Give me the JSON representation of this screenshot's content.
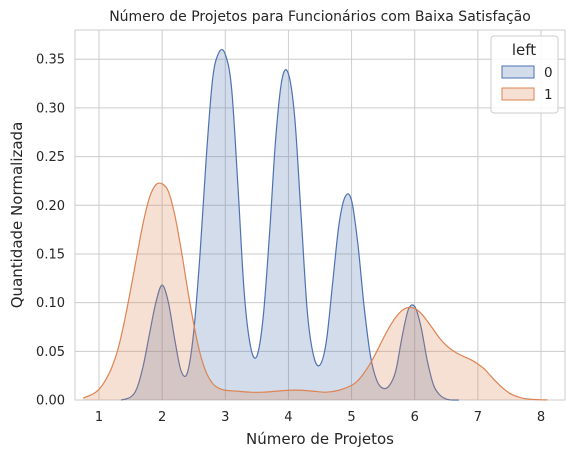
{
  "chart_data": {
    "type": "area",
    "subtype": "kde",
    "title": "Número de Projetos para Funcionários com Baixa Satisfação",
    "xlabel": "Número de Projetos",
    "ylabel": "Quantidade Normalizada",
    "xlim": [
      0.62,
      8.38
    ],
    "ylim": [
      0,
      0.38
    ],
    "xticks": [
      1,
      2,
      3,
      4,
      5,
      6,
      7,
      8
    ],
    "yticks": [
      0.0,
      0.05,
      0.1,
      0.15,
      0.2,
      0.25,
      0.3,
      0.35
    ],
    "ytick_labels": [
      "0.00",
      "0.05",
      "0.10",
      "0.15",
      "0.20",
      "0.25",
      "0.30",
      "0.35"
    ],
    "grid": true,
    "legend": {
      "title": "left",
      "placement": "top-right"
    },
    "series": [
      {
        "name": "0",
        "color": "#4c72b0",
        "x": [
          1.35,
          1.5,
          1.6,
          1.7,
          1.8,
          1.9,
          2.0,
          2.1,
          2.2,
          2.3,
          2.4,
          2.5,
          2.6,
          2.7,
          2.8,
          2.9,
          3.0,
          3.1,
          3.2,
          3.3,
          3.4,
          3.5,
          3.6,
          3.7,
          3.8,
          3.9,
          4.0,
          4.1,
          4.2,
          4.3,
          4.4,
          4.5,
          4.6,
          4.7,
          4.8,
          4.9,
          5.0,
          5.1,
          5.2,
          5.3,
          5.4,
          5.5,
          5.6,
          5.7,
          5.8,
          5.9,
          6.0,
          6.1,
          6.2,
          6.3,
          6.4,
          6.5,
          6.6,
          6.7
        ],
        "values": [
          0.0,
          0.003,
          0.012,
          0.035,
          0.068,
          0.1,
          0.118,
          0.1,
          0.062,
          0.03,
          0.028,
          0.07,
          0.15,
          0.25,
          0.33,
          0.357,
          0.355,
          0.32,
          0.22,
          0.11,
          0.055,
          0.045,
          0.085,
          0.17,
          0.27,
          0.33,
          0.335,
          0.29,
          0.19,
          0.09,
          0.045,
          0.036,
          0.06,
          0.12,
          0.18,
          0.209,
          0.205,
          0.16,
          0.095,
          0.045,
          0.02,
          0.012,
          0.015,
          0.03,
          0.065,
          0.093,
          0.096,
          0.075,
          0.04,
          0.015,
          0.005,
          0.001,
          0.0,
          0.0
        ]
      },
      {
        "name": "1",
        "color": "#dd8452",
        "x": [
          0.75,
          0.9,
          1.0,
          1.1,
          1.2,
          1.3,
          1.4,
          1.5,
          1.6,
          1.7,
          1.8,
          1.9,
          2.0,
          2.1,
          2.2,
          2.3,
          2.4,
          2.5,
          2.6,
          2.7,
          2.8,
          2.9,
          3.0,
          3.2,
          3.4,
          3.6,
          3.8,
          4.0,
          4.2,
          4.4,
          4.6,
          4.8,
          5.0,
          5.1,
          5.2,
          5.3,
          5.4,
          5.5,
          5.6,
          5.7,
          5.8,
          5.9,
          6.0,
          6.1,
          6.2,
          6.3,
          6.4,
          6.5,
          6.6,
          6.7,
          6.8,
          6.9,
          7.0,
          7.1,
          7.2,
          7.3,
          7.4,
          7.5,
          7.6,
          7.7,
          7.8,
          7.9,
          8.0,
          8.1
        ],
        "values": [
          0.002,
          0.006,
          0.011,
          0.02,
          0.033,
          0.052,
          0.08,
          0.113,
          0.148,
          0.182,
          0.208,
          0.221,
          0.222,
          0.214,
          0.19,
          0.155,
          0.115,
          0.078,
          0.048,
          0.028,
          0.017,
          0.012,
          0.01,
          0.009,
          0.008,
          0.008,
          0.009,
          0.01,
          0.01,
          0.009,
          0.008,
          0.01,
          0.015,
          0.02,
          0.028,
          0.038,
          0.05,
          0.063,
          0.075,
          0.085,
          0.092,
          0.095,
          0.094,
          0.089,
          0.081,
          0.072,
          0.063,
          0.056,
          0.051,
          0.047,
          0.044,
          0.041,
          0.037,
          0.032,
          0.025,
          0.018,
          0.012,
          0.007,
          0.004,
          0.002,
          0.001,
          0.0005,
          0.0002,
          0.0001
        ]
      }
    ]
  }
}
